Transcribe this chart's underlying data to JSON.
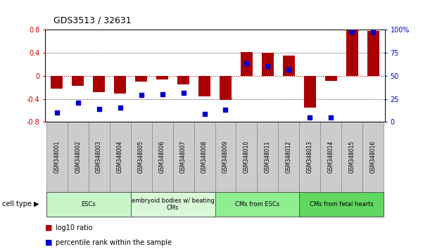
{
  "title": "GDS3513 / 32631",
  "samples": [
    "GSM348001",
    "GSM348002",
    "GSM348003",
    "GSM348004",
    "GSM348005",
    "GSM348006",
    "GSM348007",
    "GSM348008",
    "GSM348009",
    "GSM348010",
    "GSM348011",
    "GSM348012",
    "GSM348013",
    "GSM348014",
    "GSM348015",
    "GSM348016"
  ],
  "log10_ratio": [
    -0.22,
    -0.17,
    -0.28,
    -0.3,
    -0.1,
    -0.06,
    -0.15,
    -0.35,
    -0.41,
    0.41,
    0.4,
    0.35,
    -0.55,
    -0.09,
    0.8,
    0.78
  ],
  "percentile_rank": [
    10,
    21,
    14,
    16,
    29,
    30,
    32,
    9,
    13,
    64,
    61,
    57,
    5,
    5,
    98,
    97
  ],
  "cell_type_groups": [
    {
      "label": "ESCs",
      "start": 0,
      "end": 3,
      "color": "#c8f5c8"
    },
    {
      "label": "embryoid bodies w/ beating\nCMs",
      "start": 4,
      "end": 7,
      "color": "#d8f8d8"
    },
    {
      "label": "CMs from ESCs",
      "start": 8,
      "end": 11,
      "color": "#90ee90"
    },
    {
      "label": "CMs from fetal hearts",
      "start": 12,
      "end": 15,
      "color": "#60d860"
    }
  ],
  "ylim_left": [
    -0.8,
    0.8
  ],
  "ylim_right": [
    0,
    100
  ],
  "yticks_left": [
    -0.8,
    -0.4,
    0,
    0.4,
    0.8
  ],
  "yticks_right": [
    0,
    25,
    50,
    75,
    100
  ],
  "bar_color": "#aa0000",
  "dot_color": "#0000cc",
  "zero_line_color": "#cc0000",
  "legend_bar_label": "log10 ratio",
  "legend_dot_label": "percentile rank within the sample"
}
